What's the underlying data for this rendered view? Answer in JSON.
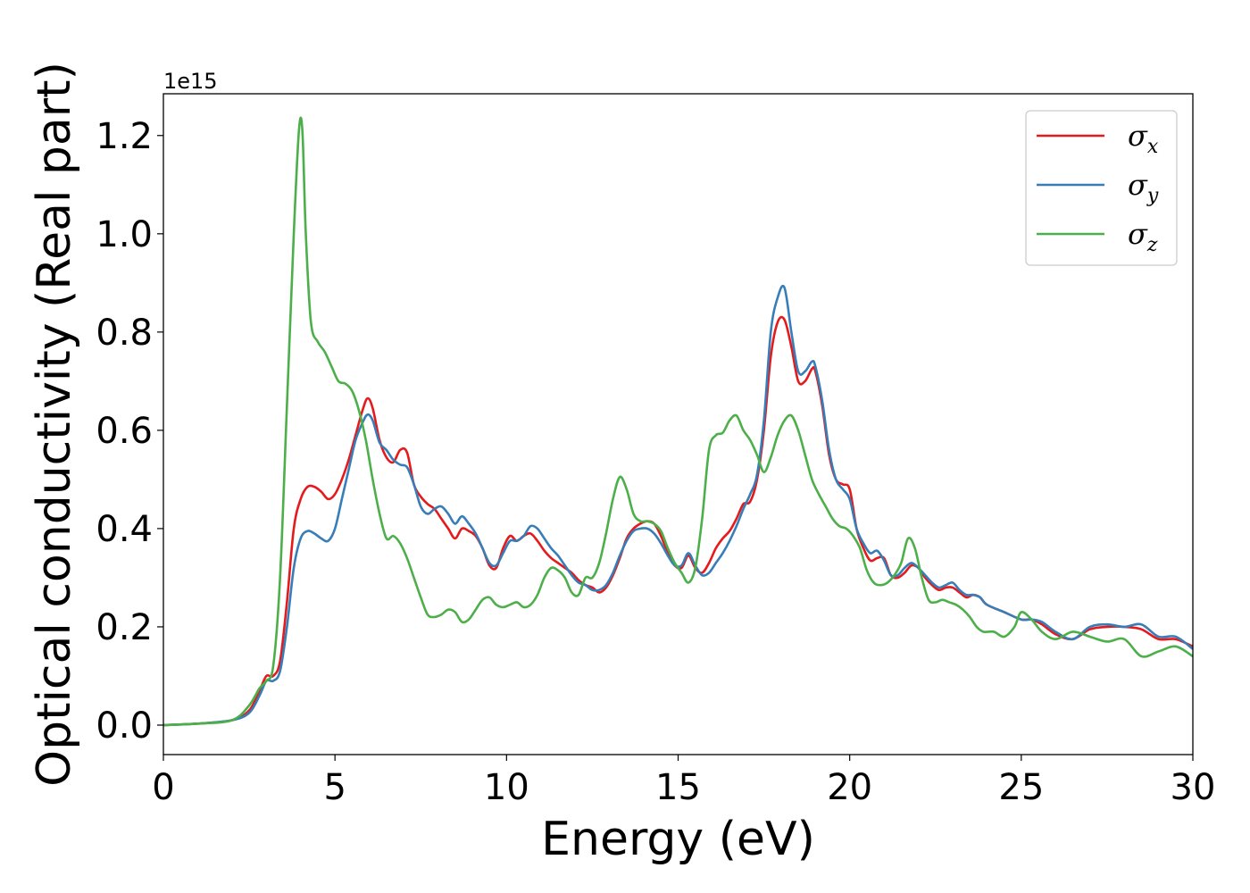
{
  "chart_data": {
    "type": "line",
    "title": "",
    "xlabel": "Energy (eV)",
    "ylabel": "Optical conductivity (Real part)",
    "y_offset_label": "1e15",
    "xlim": [
      0,
      30
    ],
    "ylim": [
      -0.06,
      1.285
    ],
    "xticks": [
      0,
      5,
      10,
      15,
      20,
      25,
      30
    ],
    "xtick_labels": [
      "0",
      "5",
      "10",
      "15",
      "20",
      "25",
      "30"
    ],
    "yticks": [
      0.0,
      0.2,
      0.4,
      0.6,
      0.8,
      1.0,
      1.2
    ],
    "ytick_labels": [
      "0.0",
      "0.2",
      "0.4",
      "0.6",
      "0.8",
      "1.0",
      "1.2"
    ],
    "grid": false,
    "legend_position": "top-right",
    "series": [
      {
        "name": "σx",
        "legend_base": "σ",
        "legend_sub": "x",
        "color": "#e41a1c",
        "x": [
          0,
          1,
          2,
          2.5,
          2.8,
          3.0,
          3.2,
          3.4,
          3.6,
          3.8,
          4.0,
          4.2,
          4.4,
          4.6,
          4.8,
          5.0,
          5.2,
          5.4,
          5.6,
          5.8,
          5.95,
          6.1,
          6.3,
          6.5,
          6.7,
          6.9,
          7.1,
          7.3,
          7.5,
          7.7,
          7.9,
          8.1,
          8.3,
          8.5,
          8.7,
          8.9,
          9.1,
          9.3,
          9.5,
          9.7,
          9.9,
          10.1,
          10.3,
          10.5,
          10.7,
          10.9,
          11.1,
          11.3,
          11.5,
          11.7,
          11.9,
          12.1,
          12.3,
          12.5,
          12.7,
          12.9,
          13.1,
          13.3,
          13.5,
          13.7,
          13.9,
          14.1,
          14.3,
          14.5,
          14.7,
          14.9,
          15.1,
          15.3,
          15.5,
          15.7,
          15.9,
          16.1,
          16.3,
          16.5,
          16.7,
          16.9,
          17.1,
          17.3,
          17.5,
          17.7,
          17.9,
          18.1,
          18.3,
          18.5,
          18.7,
          18.9,
          19.0,
          19.2,
          19.4,
          19.6,
          19.8,
          20.0,
          20.2,
          20.4,
          20.6,
          20.8,
          21.0,
          21.2,
          21.4,
          21.6,
          21.8,
          22.0,
          22.2,
          22.4,
          22.6,
          22.8,
          23.0,
          23.2,
          23.4,
          23.6,
          23.8,
          24.0,
          24.5,
          25.0,
          25.3,
          25.6,
          26.0,
          26.5,
          27.0,
          27.5,
          28.0,
          28.5,
          29.0,
          29.5,
          30.0
        ],
        "y": [
          0.0,
          0.003,
          0.01,
          0.03,
          0.07,
          0.1,
          0.1,
          0.13,
          0.25,
          0.4,
          0.46,
          0.485,
          0.485,
          0.475,
          0.46,
          0.47,
          0.5,
          0.54,
          0.59,
          0.64,
          0.665,
          0.645,
          0.58,
          0.545,
          0.535,
          0.56,
          0.555,
          0.49,
          0.465,
          0.45,
          0.44,
          0.42,
          0.4,
          0.38,
          0.4,
          0.395,
          0.385,
          0.36,
          0.325,
          0.32,
          0.36,
          0.385,
          0.375,
          0.385,
          0.39,
          0.375,
          0.355,
          0.34,
          0.33,
          0.32,
          0.31,
          0.295,
          0.285,
          0.28,
          0.27,
          0.28,
          0.305,
          0.34,
          0.38,
          0.4,
          0.41,
          0.415,
          0.41,
          0.385,
          0.35,
          0.325,
          0.32,
          0.345,
          0.32,
          0.31,
          0.33,
          0.36,
          0.38,
          0.395,
          0.42,
          0.45,
          0.455,
          0.5,
          0.6,
          0.75,
          0.82,
          0.825,
          0.77,
          0.7,
          0.7,
          0.725,
          0.72,
          0.65,
          0.55,
          0.5,
          0.49,
          0.48,
          0.4,
          0.36,
          0.335,
          0.34,
          0.34,
          0.305,
          0.3,
          0.31,
          0.325,
          0.32,
          0.3,
          0.285,
          0.275,
          0.28,
          0.28,
          0.27,
          0.26,
          0.265,
          0.26,
          0.245,
          0.23,
          0.215,
          0.215,
          0.205,
          0.185,
          0.175,
          0.195,
          0.2,
          0.2,
          0.195,
          0.175,
          0.175,
          0.16
        ]
      },
      {
        "name": "σy",
        "legend_base": "σ",
        "legend_sub": "y",
        "color": "#377eb8",
        "x": [
          0,
          1,
          2,
          2.5,
          2.8,
          3.0,
          3.2,
          3.4,
          3.6,
          3.8,
          4.0,
          4.2,
          4.4,
          4.6,
          4.8,
          5.0,
          5.2,
          5.4,
          5.6,
          5.8,
          5.95,
          6.1,
          6.3,
          6.5,
          6.7,
          6.9,
          7.1,
          7.3,
          7.5,
          7.7,
          7.9,
          8.1,
          8.3,
          8.5,
          8.7,
          8.9,
          9.1,
          9.3,
          9.5,
          9.7,
          9.9,
          10.1,
          10.3,
          10.5,
          10.7,
          10.9,
          11.1,
          11.3,
          11.5,
          11.7,
          11.9,
          12.1,
          12.3,
          12.5,
          12.7,
          12.9,
          13.1,
          13.3,
          13.5,
          13.7,
          13.9,
          14.1,
          14.3,
          14.5,
          14.7,
          14.9,
          15.1,
          15.3,
          15.5,
          15.7,
          15.9,
          16.1,
          16.3,
          16.5,
          16.7,
          16.9,
          17.1,
          17.3,
          17.5,
          17.7,
          17.9,
          18.1,
          18.3,
          18.5,
          18.7,
          18.9,
          19.0,
          19.2,
          19.4,
          19.6,
          19.8,
          20.0,
          20.2,
          20.4,
          20.6,
          20.8,
          21.0,
          21.2,
          21.4,
          21.6,
          21.8,
          22.0,
          22.2,
          22.4,
          22.6,
          22.8,
          23.0,
          23.2,
          23.4,
          23.6,
          23.8,
          24.0,
          24.5,
          25.0,
          25.3,
          25.6,
          26.0,
          26.5,
          27.0,
          27.5,
          28.0,
          28.5,
          29.0,
          29.5,
          30.0
        ],
        "y": [
          0.0,
          0.003,
          0.01,
          0.025,
          0.06,
          0.09,
          0.09,
          0.11,
          0.2,
          0.32,
          0.38,
          0.395,
          0.39,
          0.38,
          0.375,
          0.4,
          0.46,
          0.52,
          0.58,
          0.615,
          0.632,
          0.62,
          0.575,
          0.56,
          0.54,
          0.53,
          0.525,
          0.49,
          0.445,
          0.43,
          0.44,
          0.445,
          0.43,
          0.41,
          0.425,
          0.41,
          0.39,
          0.36,
          0.33,
          0.325,
          0.35,
          0.375,
          0.375,
          0.385,
          0.405,
          0.4,
          0.38,
          0.36,
          0.345,
          0.325,
          0.305,
          0.29,
          0.285,
          0.275,
          0.275,
          0.285,
          0.31,
          0.345,
          0.375,
          0.395,
          0.4,
          0.4,
          0.39,
          0.37,
          0.345,
          0.325,
          0.325,
          0.35,
          0.325,
          0.305,
          0.31,
          0.33,
          0.35,
          0.375,
          0.405,
          0.44,
          0.47,
          0.51,
          0.62,
          0.8,
          0.87,
          0.89,
          0.8,
          0.72,
          0.72,
          0.74,
          0.73,
          0.66,
          0.56,
          0.5,
          0.48,
          0.46,
          0.4,
          0.37,
          0.35,
          0.355,
          0.335,
          0.305,
          0.305,
          0.32,
          0.33,
          0.32,
          0.305,
          0.29,
          0.28,
          0.285,
          0.29,
          0.275,
          0.265,
          0.265,
          0.26,
          0.245,
          0.23,
          0.215,
          0.215,
          0.21,
          0.19,
          0.175,
          0.2,
          0.205,
          0.2,
          0.205,
          0.18,
          0.18,
          0.155
        ]
      },
      {
        "name": "σz",
        "legend_base": "σ",
        "legend_sub": "z",
        "color": "#4daf4a",
        "x": [
          0,
          1,
          2,
          2.5,
          2.8,
          3.0,
          3.2,
          3.4,
          3.6,
          3.8,
          3.95,
          4.05,
          4.15,
          4.3,
          4.5,
          4.7,
          4.9,
          5.1,
          5.3,
          5.5,
          5.7,
          5.9,
          6.1,
          6.3,
          6.5,
          6.7,
          6.9,
          7.1,
          7.3,
          7.5,
          7.7,
          7.9,
          8.1,
          8.3,
          8.5,
          8.7,
          8.9,
          9.1,
          9.3,
          9.5,
          9.7,
          9.9,
          10.1,
          10.3,
          10.5,
          10.7,
          10.9,
          11.1,
          11.3,
          11.5,
          11.7,
          11.9,
          12.1,
          12.3,
          12.5,
          12.7,
          12.9,
          13.1,
          13.3,
          13.5,
          13.7,
          13.9,
          14.1,
          14.3,
          14.5,
          14.7,
          14.9,
          15.1,
          15.3,
          15.5,
          15.7,
          15.9,
          16.1,
          16.3,
          16.5,
          16.7,
          16.9,
          17.1,
          17.3,
          17.5,
          17.7,
          17.9,
          18.1,
          18.3,
          18.5,
          18.7,
          18.9,
          19.1,
          19.3,
          19.5,
          19.7,
          19.9,
          20.1,
          20.3,
          20.5,
          20.7,
          20.9,
          21.1,
          21.3,
          21.5,
          21.7,
          21.9,
          22.1,
          22.3,
          22.5,
          22.7,
          22.9,
          23.1,
          23.3,
          23.5,
          23.7,
          23.9,
          24.2,
          24.5,
          24.8,
          25.0,
          25.3,
          25.6,
          26.0,
          26.5,
          27.0,
          27.5,
          28.0,
          28.5,
          29.0,
          29.5,
          30.0
        ],
        "y": [
          0.0,
          0.003,
          0.01,
          0.04,
          0.075,
          0.09,
          0.12,
          0.3,
          0.65,
          1.0,
          1.21,
          1.21,
          1.0,
          0.82,
          0.78,
          0.76,
          0.73,
          0.7,
          0.695,
          0.68,
          0.64,
          0.58,
          0.5,
          0.43,
          0.38,
          0.385,
          0.37,
          0.34,
          0.3,
          0.26,
          0.225,
          0.22,
          0.225,
          0.235,
          0.23,
          0.21,
          0.215,
          0.235,
          0.255,
          0.26,
          0.245,
          0.24,
          0.245,
          0.25,
          0.24,
          0.245,
          0.265,
          0.3,
          0.32,
          0.315,
          0.3,
          0.27,
          0.265,
          0.3,
          0.3,
          0.33,
          0.39,
          0.46,
          0.505,
          0.48,
          0.43,
          0.415,
          0.415,
          0.41,
          0.395,
          0.36,
          0.33,
          0.31,
          0.29,
          0.32,
          0.42,
          0.56,
          0.59,
          0.595,
          0.62,
          0.63,
          0.6,
          0.58,
          0.55,
          0.515,
          0.545,
          0.59,
          0.62,
          0.63,
          0.6,
          0.55,
          0.5,
          0.47,
          0.445,
          0.42,
          0.405,
          0.4,
          0.385,
          0.36,
          0.315,
          0.29,
          0.285,
          0.29,
          0.305,
          0.33,
          0.38,
          0.36,
          0.3,
          0.255,
          0.25,
          0.255,
          0.25,
          0.245,
          0.235,
          0.22,
          0.2,
          0.19,
          0.19,
          0.18,
          0.2,
          0.23,
          0.215,
          0.19,
          0.175,
          0.19,
          0.18,
          0.17,
          0.175,
          0.14,
          0.15,
          0.16,
          0.14
        ]
      }
    ]
  }
}
